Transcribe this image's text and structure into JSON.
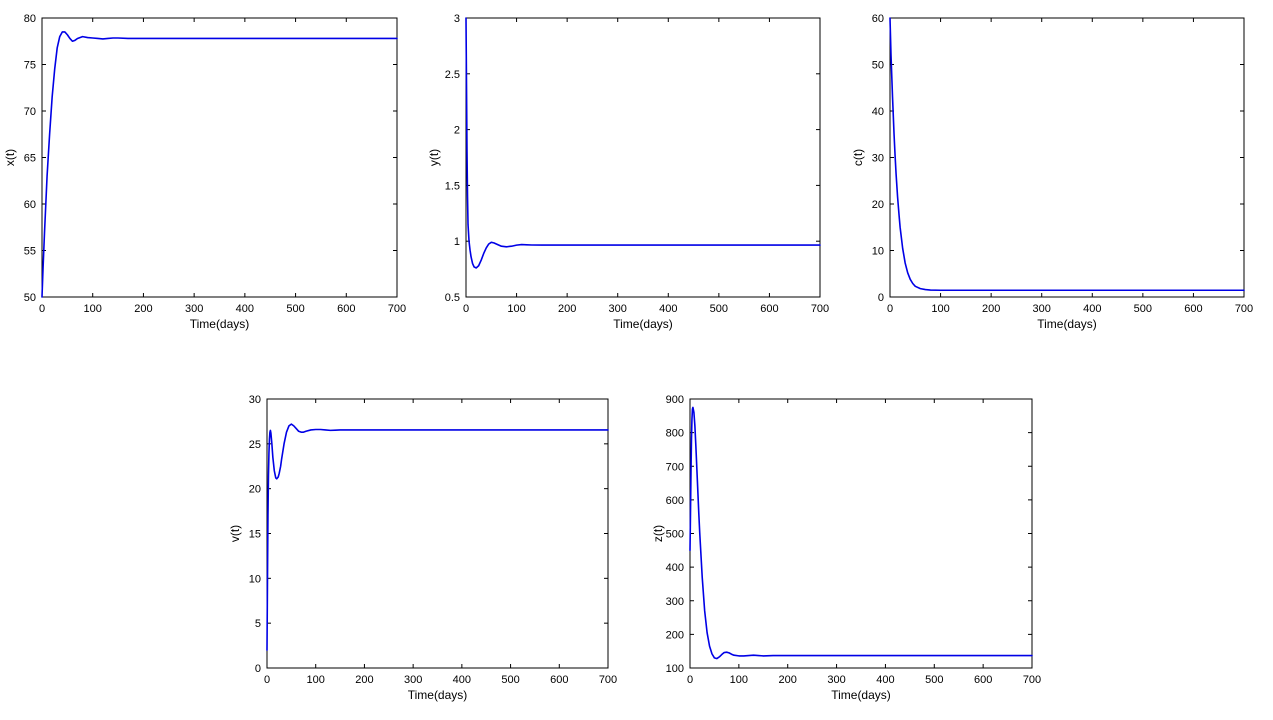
{
  "colors": {
    "line": "#0000e6",
    "axis": "#000000",
    "background": "#ffffff"
  },
  "chart_data": [
    {
      "type": "line",
      "xlabel": "Time(days)",
      "ylabel": "x(t)",
      "xlim": [
        0,
        700
      ],
      "ylim": [
        50,
        80
      ],
      "xticks": [
        0,
        100,
        200,
        300,
        400,
        500,
        600,
        700
      ],
      "yticks": [
        50,
        55,
        60,
        65,
        70,
        75,
        80
      ],
      "ytick_labels": [
        "50",
        "55",
        "60",
        "65",
        "70",
        "75",
        "80"
      ],
      "grid": false,
      "series": [
        {
          "x": [
            0,
            2,
            5,
            10,
            15,
            20,
            25,
            30,
            35,
            40,
            45,
            50,
            55,
            60,
            65,
            70,
            80,
            90,
            100,
            110,
            120,
            130,
            140,
            150,
            170,
            200,
            300,
            400,
            500,
            600,
            700
          ],
          "y": [
            50,
            53,
            57,
            63,
            67.5,
            71.5,
            74.5,
            76.8,
            78.0,
            78.5,
            78.5,
            78.2,
            77.8,
            77.5,
            77.6,
            77.8,
            78.0,
            77.9,
            77.85,
            77.8,
            77.75,
            77.8,
            77.85,
            77.85,
            77.8,
            77.8,
            77.8,
            77.8,
            77.8,
            77.8,
            77.8
          ]
        }
      ]
    },
    {
      "type": "line",
      "xlabel": "Time(days)",
      "ylabel": "y(t)",
      "xlim": [
        0,
        700
      ],
      "ylim": [
        0.5,
        3
      ],
      "xticks": [
        0,
        100,
        200,
        300,
        400,
        500,
        600,
        700
      ],
      "yticks": [
        0.5,
        1,
        1.5,
        2,
        2.5,
        3
      ],
      "ytick_labels": [
        "0.5",
        "1",
        "1.5",
        "2",
        "2.5",
        "3"
      ],
      "grid": false,
      "series": [
        {
          "x": [
            0,
            1,
            2,
            3,
            4,
            6,
            8,
            10,
            13,
            16,
            20,
            25,
            30,
            35,
            40,
            45,
            50,
            55,
            60,
            65,
            70,
            80,
            90,
            100,
            110,
            120,
            130,
            150,
            170,
            200,
            300,
            400,
            500,
            600,
            700
          ],
          "y": [
            3.0,
            2.4,
            1.8,
            1.4,
            1.15,
            1.0,
            0.92,
            0.86,
            0.8,
            0.77,
            0.76,
            0.78,
            0.83,
            0.89,
            0.94,
            0.975,
            0.99,
            0.985,
            0.975,
            0.965,
            0.955,
            0.95,
            0.955,
            0.965,
            0.97,
            0.968,
            0.966,
            0.965,
            0.965,
            0.965,
            0.965,
            0.965,
            0.965,
            0.965,
            0.965
          ]
        }
      ]
    },
    {
      "type": "line",
      "xlabel": "Time(days)",
      "ylabel": "c(t)",
      "xlim": [
        0,
        700
      ],
      "ylim": [
        0,
        60
      ],
      "xticks": [
        0,
        100,
        200,
        300,
        400,
        500,
        600,
        700
      ],
      "yticks": [
        0,
        10,
        20,
        30,
        40,
        50,
        60
      ],
      "ytick_labels": [
        "0",
        "10",
        "20",
        "30",
        "40",
        "50",
        "60"
      ],
      "grid": false,
      "series": [
        {
          "x": [
            0,
            2,
            5,
            8,
            10,
            12,
            15,
            18,
            20,
            25,
            30,
            35,
            40,
            45,
            50,
            60,
            70,
            80,
            100,
            150,
            200,
            300,
            400,
            500,
            600,
            700
          ],
          "y": [
            60,
            52,
            43,
            35,
            30.5,
            26.5,
            21.5,
            17.5,
            15,
            10.5,
            7.3,
            5.2,
            3.8,
            2.9,
            2.3,
            1.8,
            1.6,
            1.5,
            1.45,
            1.45,
            1.45,
            1.45,
            1.45,
            1.45,
            1.45,
            1.45
          ]
        }
      ]
    },
    {
      "type": "line",
      "xlabel": "Time(days)",
      "ylabel": "v(t)",
      "xlim": [
        0,
        700
      ],
      "ylim": [
        0,
        30
      ],
      "xticks": [
        0,
        100,
        200,
        300,
        400,
        500,
        600,
        700
      ],
      "yticks": [
        0,
        5,
        10,
        15,
        20,
        25,
        30
      ],
      "ytick_labels": [
        "0",
        "5",
        "10",
        "15",
        "20",
        "25",
        "30"
      ],
      "grid": false,
      "series": [
        {
          "x": [
            0,
            1,
            2,
            3,
            4,
            5,
            6,
            7,
            8,
            10,
            12,
            15,
            18,
            20,
            23,
            25,
            28,
            30,
            35,
            40,
            45,
            50,
            55,
            60,
            65,
            70,
            75,
            80,
            90,
            100,
            110,
            120,
            130,
            140,
            150,
            170,
            200,
            300,
            400,
            500,
            600,
            700
          ],
          "y": [
            2,
            10,
            17,
            21.5,
            24,
            25.5,
            26.3,
            26.5,
            26.2,
            25,
            23.5,
            22,
            21.2,
            21.1,
            21.3,
            21.7,
            22.5,
            23.3,
            25.0,
            26.3,
            27.0,
            27.2,
            27.0,
            26.7,
            26.4,
            26.3,
            26.3,
            26.4,
            26.55,
            26.6,
            26.6,
            26.55,
            26.5,
            26.52,
            26.55,
            26.55,
            26.55,
            26.55,
            26.55,
            26.55,
            26.55,
            26.55
          ]
        }
      ]
    },
    {
      "type": "line",
      "xlabel": "Time(days)",
      "ylabel": "z(t)",
      "xlim": [
        0,
        700
      ],
      "ylim": [
        100,
        900
      ],
      "xticks": [
        0,
        100,
        200,
        300,
        400,
        500,
        600,
        700
      ],
      "yticks": [
        100,
        200,
        300,
        400,
        500,
        600,
        700,
        800,
        900
      ],
      "ytick_labels": [
        "100",
        "200",
        "300",
        "400",
        "500",
        "600",
        "700",
        "800",
        "900"
      ],
      "grid": false,
      "series": [
        {
          "x": [
            0,
            1,
            2,
            3,
            4,
            5,
            6,
            8,
            10,
            12,
            15,
            18,
            20,
            25,
            30,
            35,
            40,
            45,
            50,
            55,
            60,
            65,
            70,
            75,
            80,
            85,
            90,
            100,
            110,
            120,
            130,
            140,
            150,
            170,
            200,
            300,
            400,
            500,
            600,
            700
          ],
          "y": [
            450,
            560,
            680,
            780,
            840,
            870,
            875,
            860,
            820,
            760,
            660,
            560,
            500,
            370,
            270,
            205,
            165,
            142,
            130,
            128,
            133,
            140,
            146,
            147,
            145,
            141,
            138,
            136,
            136,
            137,
            138,
            137,
            136,
            137,
            137,
            137,
            137,
            137,
            137,
            137
          ]
        }
      ]
    }
  ]
}
